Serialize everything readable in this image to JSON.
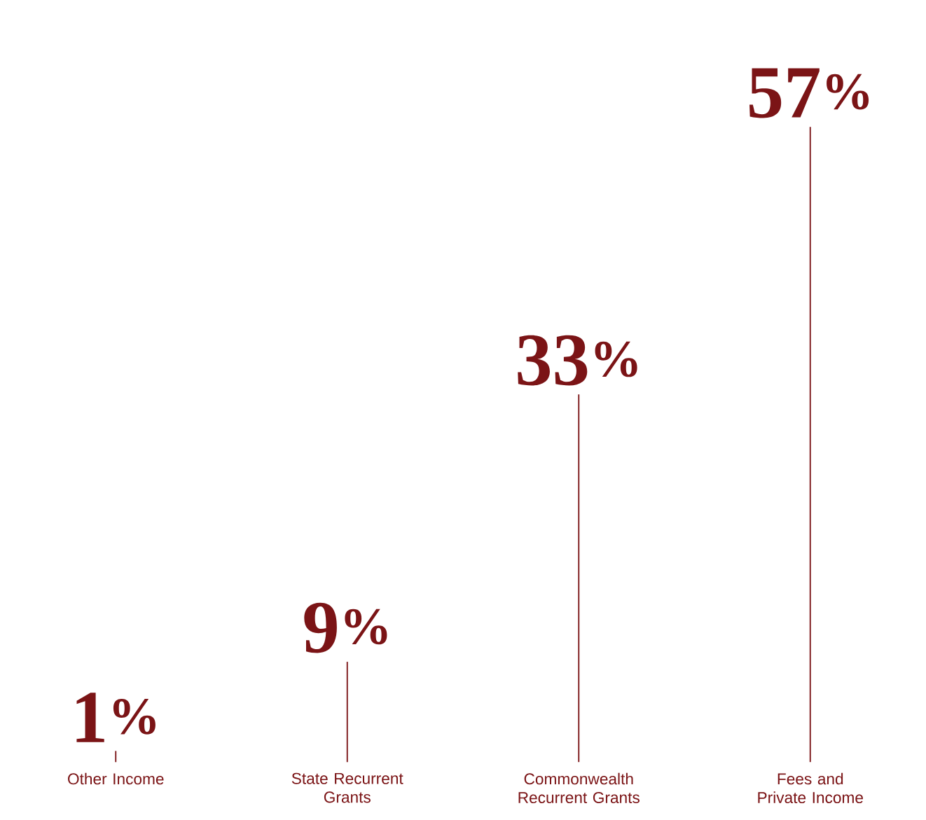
{
  "chart_data": {
    "type": "bar",
    "categories": [
      "Other Income",
      "State Recurrent Grants",
      "Commonwealth Recurrent Grants",
      "Fees and Private Income"
    ],
    "values": [
      1,
      9,
      33,
      57
    ],
    "value_labels": [
      "1$^{%}$",
      "9$^{%}$",
      "33$^{%}$",
      "57$^{%}$"
    ],
    "color": "#7b1416"
  }
}
